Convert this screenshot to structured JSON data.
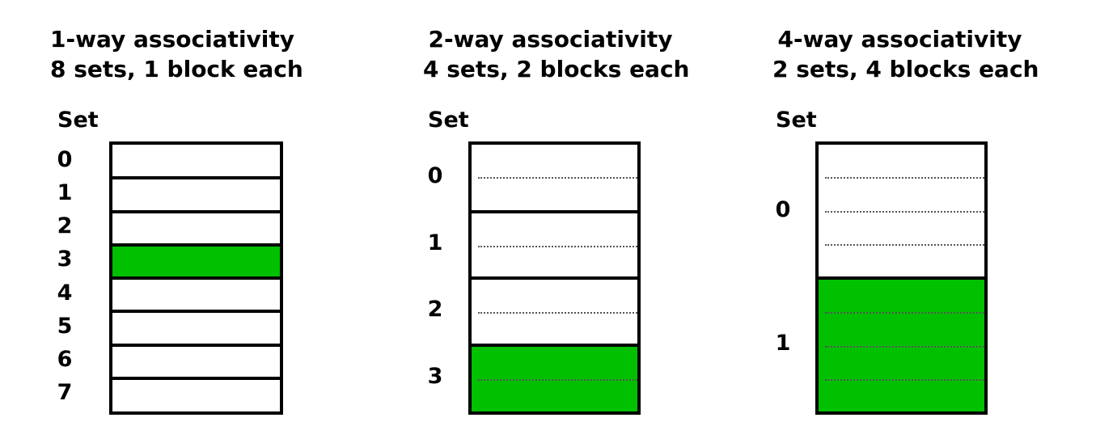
{
  "panels": [
    {
      "title_line1": "1-way associativity",
      "title_line2": "8 sets, 1 block each",
      "set_header": "Set",
      "ways": 1,
      "sets": [
        {
          "label": "0",
          "filled": false
        },
        {
          "label": "1",
          "filled": false
        },
        {
          "label": "2",
          "filled": false
        },
        {
          "label": "3",
          "filled": true
        },
        {
          "label": "4",
          "filled": false
        },
        {
          "label": "5",
          "filled": false
        },
        {
          "label": "6",
          "filled": false
        },
        {
          "label": "7",
          "filled": false
        }
      ]
    },
    {
      "title_line1": "2-way associativity",
      "title_line2": "4 sets, 2 blocks each",
      "set_header": "Set",
      "ways": 2,
      "sets": [
        {
          "label": "0",
          "filled": false
        },
        {
          "label": "1",
          "filled": false
        },
        {
          "label": "2",
          "filled": false
        },
        {
          "label": "3",
          "filled": true
        }
      ]
    },
    {
      "title_line1": "4-way associativity",
      "title_line2": "2 sets, 4 blocks each",
      "set_header": "Set",
      "ways": 4,
      "sets": [
        {
          "label": "0",
          "filled": false
        },
        {
          "label": "1",
          "filled": true
        }
      ]
    }
  ],
  "colors": {
    "highlight": "#00c000",
    "border": "#000000"
  }
}
